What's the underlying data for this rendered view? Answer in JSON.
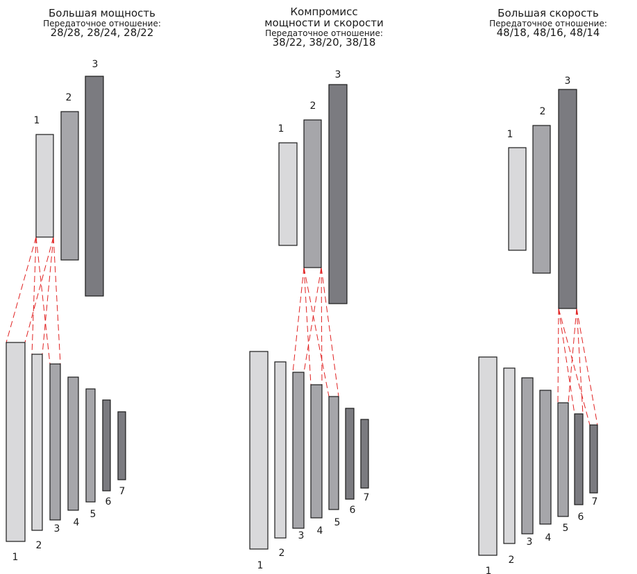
{
  "panels": [
    {
      "title_line1": "Большая мощность",
      "title_line2": "",
      "subtitle": "Передаточное отношение:",
      "ratios": "28/28, 28/24, 28/22",
      "chainrings": [
        "1",
        "2",
        "3"
      ],
      "cassette": [
        "1",
        "2",
        "3",
        "4",
        "5",
        "6",
        "7"
      ],
      "active_chainring": "1",
      "chain_to_sprockets": [
        "1",
        "2",
        "3"
      ]
    },
    {
      "title_line1": "Компромисс",
      "title_line2": "мощности и скорости",
      "subtitle": "Передаточное отношение:",
      "ratios": "38/22, 38/20, 38/18",
      "chainrings": [
        "1",
        "2",
        "3"
      ],
      "cassette": [
        "1",
        "2",
        "3",
        "4",
        "5",
        "6",
        "7"
      ],
      "active_chainring": "2",
      "chain_to_sprockets": [
        "3",
        "4",
        "5"
      ]
    },
    {
      "title_line1": "Большая скорость",
      "title_line2": "",
      "subtitle": "Передаточное отношение:",
      "ratios": "48/18, 48/16, 48/14",
      "chainrings": [
        "1",
        "2",
        "3"
      ],
      "cassette": [
        "1",
        "2",
        "3",
        "4",
        "5",
        "6",
        "7"
      ],
      "active_chainring": "3",
      "chain_to_sprockets": [
        "5",
        "6",
        "7"
      ]
    }
  ],
  "colors": {
    "gear_light": "#d9d9db",
    "gear_mid": "#a6a6aa",
    "gear_dark": "#7b7b80",
    "gear_darkest": "#6a6a6f",
    "stroke": "#1a1a1a",
    "chain": "#e02020"
  }
}
